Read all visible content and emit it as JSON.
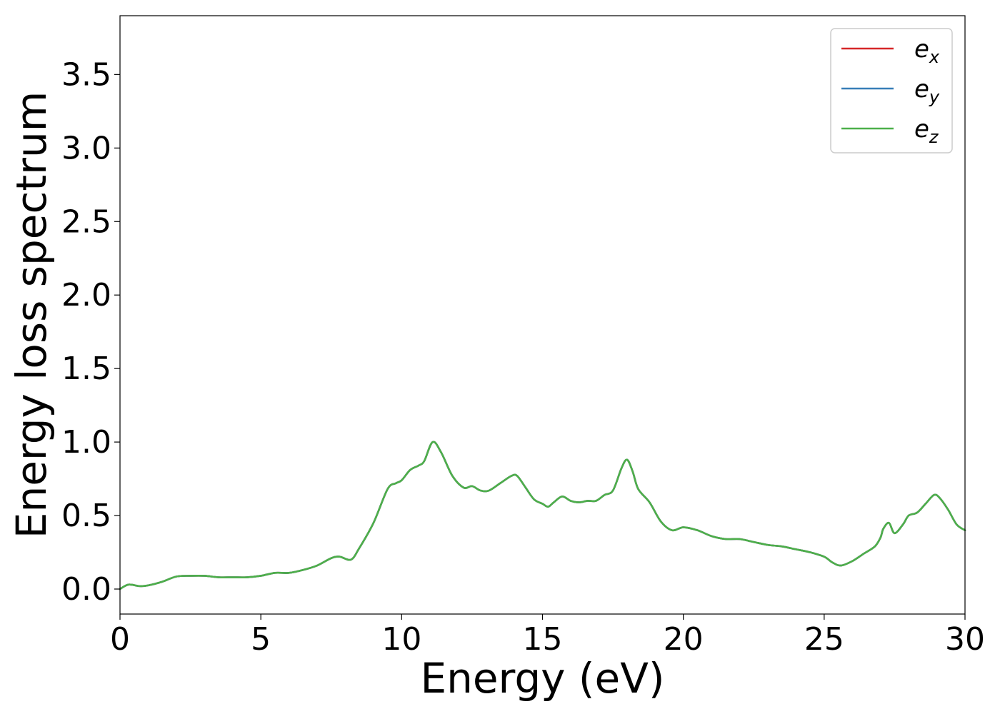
{
  "chart_data": {
    "type": "line",
    "xlabel": "Energy (eV)",
    "ylabel": "Energy loss spectrum",
    "xlim": [
      0,
      30
    ],
    "ylim": [
      -0.17,
      3.9
    ],
    "xticks": [
      0,
      5,
      10,
      15,
      20,
      25,
      30
    ],
    "xtick_labels": [
      "0",
      "5",
      "10",
      "15",
      "20",
      "25",
      "30"
    ],
    "yticks": [
      0.0,
      0.5,
      1.0,
      1.5,
      2.0,
      2.5,
      3.0,
      3.5
    ],
    "ytick_labels": [
      "0.0",
      "0.5",
      "1.0",
      "1.5",
      "2.0",
      "2.5",
      "3.0",
      "3.5"
    ],
    "grid": false,
    "legend_position": "top-right",
    "x": [
      0,
      0.3,
      0.7,
      1.0,
      1.5,
      2.0,
      2.5,
      3.0,
      3.5,
      4.0,
      4.5,
      5.0,
      5.5,
      6.0,
      6.5,
      7.0,
      7.5,
      7.8,
      8.2,
      8.5,
      9.0,
      9.5,
      9.8,
      10.0,
      10.3,
      10.6,
      10.8,
      11.1,
      11.4,
      11.8,
      12.2,
      12.5,
      12.8,
      13.1,
      13.5,
      13.9,
      14.1,
      14.4,
      14.7,
      15.0,
      15.2,
      15.4,
      15.7,
      16.0,
      16.3,
      16.6,
      16.9,
      17.2,
      17.5,
      17.8,
      18.0,
      18.2,
      18.4,
      18.8,
      19.2,
      19.6,
      20.0,
      20.5,
      21.0,
      21.5,
      22.0,
      22.5,
      23.0,
      23.5,
      24.0,
      24.5,
      25.0,
      25.3,
      25.6,
      26.0,
      26.4,
      26.8,
      27.0,
      27.1,
      27.3,
      27.5,
      27.8,
      28.0,
      28.3,
      28.6,
      28.9,
      29.1,
      29.4,
      29.7,
      30.0
    ],
    "series": [
      {
        "name": "e_x",
        "label_main": "e",
        "label_sub": "x",
        "color": "#d62728",
        "values": [
          0.0,
          0.03,
          0.02,
          0.025,
          0.05,
          0.085,
          0.09,
          0.09,
          0.08,
          0.08,
          0.08,
          0.09,
          0.11,
          0.11,
          0.13,
          0.16,
          0.21,
          0.22,
          0.2,
          0.28,
          0.45,
          0.68,
          0.72,
          0.74,
          0.81,
          0.84,
          0.87,
          1.0,
          0.93,
          0.77,
          0.69,
          0.7,
          0.67,
          0.67,
          0.72,
          0.77,
          0.77,
          0.69,
          0.61,
          0.58,
          0.56,
          0.59,
          0.63,
          0.6,
          0.59,
          0.6,
          0.6,
          0.64,
          0.67,
          0.82,
          0.88,
          0.8,
          0.68,
          0.59,
          0.46,
          0.4,
          0.42,
          0.4,
          0.36,
          0.34,
          0.34,
          0.32,
          0.3,
          0.29,
          0.27,
          0.25,
          0.22,
          0.18,
          0.16,
          0.19,
          0.24,
          0.29,
          0.35,
          0.41,
          0.45,
          0.38,
          0.44,
          0.5,
          0.52,
          0.58,
          0.64,
          0.62,
          0.54,
          0.44,
          0.4
        ]
      },
      {
        "name": "e_y",
        "label_main": "e",
        "label_sub": "y",
        "color": "#377eb8",
        "values": [
          0.0,
          0.03,
          0.02,
          0.025,
          0.05,
          0.085,
          0.09,
          0.09,
          0.08,
          0.08,
          0.08,
          0.09,
          0.11,
          0.11,
          0.13,
          0.16,
          0.21,
          0.22,
          0.2,
          0.28,
          0.45,
          0.68,
          0.72,
          0.74,
          0.81,
          0.84,
          0.87,
          1.0,
          0.93,
          0.77,
          0.69,
          0.7,
          0.67,
          0.67,
          0.72,
          0.77,
          0.77,
          0.69,
          0.61,
          0.58,
          0.56,
          0.59,
          0.63,
          0.6,
          0.59,
          0.6,
          0.6,
          0.64,
          0.67,
          0.82,
          0.88,
          0.8,
          0.68,
          0.59,
          0.46,
          0.4,
          0.42,
          0.4,
          0.36,
          0.34,
          0.34,
          0.32,
          0.3,
          0.29,
          0.27,
          0.25,
          0.22,
          0.18,
          0.16,
          0.19,
          0.24,
          0.29,
          0.35,
          0.41,
          0.45,
          0.38,
          0.44,
          0.5,
          0.52,
          0.58,
          0.64,
          0.62,
          0.54,
          0.44,
          0.4
        ]
      },
      {
        "name": "e_z",
        "label_main": "e",
        "label_sub": "z",
        "color": "#4daf4a",
        "values": [
          0.0,
          0.03,
          0.02,
          0.025,
          0.05,
          0.085,
          0.09,
          0.09,
          0.08,
          0.08,
          0.08,
          0.09,
          0.11,
          0.11,
          0.13,
          0.16,
          0.21,
          0.22,
          0.2,
          0.28,
          0.45,
          0.68,
          0.72,
          0.74,
          0.81,
          0.84,
          0.87,
          1.0,
          0.93,
          0.77,
          0.69,
          0.7,
          0.67,
          0.67,
          0.72,
          0.77,
          0.77,
          0.69,
          0.61,
          0.58,
          0.56,
          0.59,
          0.63,
          0.6,
          0.59,
          0.6,
          0.6,
          0.64,
          0.67,
          0.82,
          0.88,
          0.8,
          0.68,
          0.59,
          0.46,
          0.4,
          0.42,
          0.4,
          0.36,
          0.34,
          0.34,
          0.32,
          0.3,
          0.29,
          0.27,
          0.25,
          0.22,
          0.18,
          0.16,
          0.19,
          0.24,
          0.29,
          0.35,
          0.41,
          0.45,
          0.38,
          0.44,
          0.5,
          0.52,
          0.58,
          0.64,
          0.62,
          0.54,
          0.44,
          0.4
        ]
      }
    ]
  }
}
